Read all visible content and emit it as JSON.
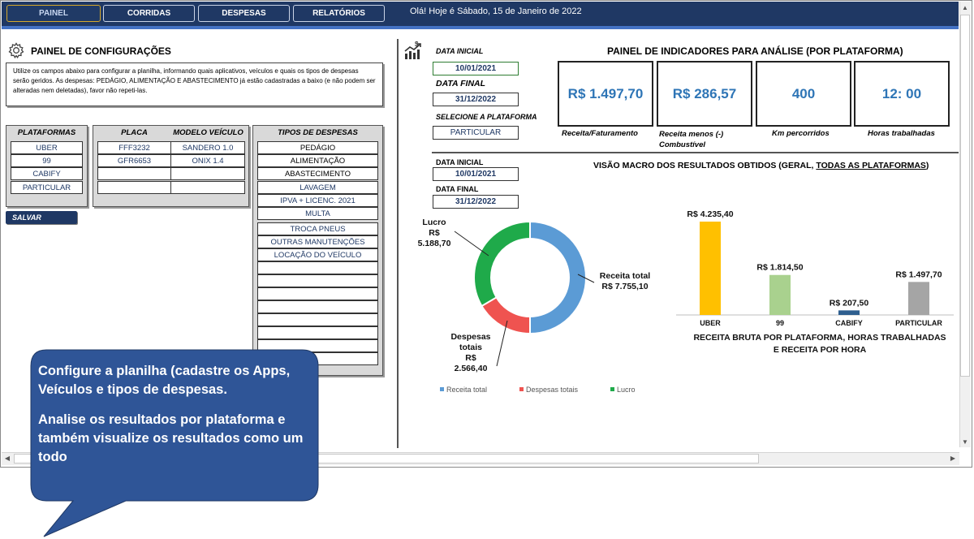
{
  "nav": {
    "tabs": [
      {
        "label": "PAINEL"
      },
      {
        "label": "CORRIDAS"
      },
      {
        "label": "DESPESAS"
      },
      {
        "label": "RELATÓRIOS"
      }
    ],
    "greeting": "Olá! Hoje é Sábado, 15 de Janeiro de 2022"
  },
  "config": {
    "title": "PAINEL DE CONFIGURAÇÕES",
    "icon": "gear-icon",
    "info": "Utilize os campos abaixo para configurar a planilha, informando quais aplicativos, veículos e quais os tipos de despesas serão geridos. As despesas: PEDÁGIO, ALIMENTAÇÃO E ABASTECIMENTO já estão cadastradas a baixo (e não podem ser alteradas nem deletadas), favor não repeti-las.",
    "platforms_header": "PLATAFORMAS",
    "platforms": [
      "UBER",
      "99",
      "CABIFY",
      "PARTICULAR"
    ],
    "plate_header": "PLACA",
    "model_header": "MODELO VEÍCULO",
    "vehicles": [
      {
        "plate": "FFF3232",
        "model": "SANDERO 1.0"
      },
      {
        "plate": "GFR6653",
        "model": "ONIX 1.4"
      }
    ],
    "expenses_header": "TIPOS DE DESPESAS",
    "expenses": [
      "PEDÁGIO",
      "ALIMENTAÇÃO",
      "ABASTECIMENTO",
      "LAVAGEM",
      "IPVA + LICENC. 2021",
      "MULTA",
      "TROCA PNEUS",
      "OUTRAS MANUTENÇÕES",
      "LOCAÇÃO DO VEÍCULO"
    ],
    "save_label": "SALVAR"
  },
  "filters": {
    "icon": "chart-money-icon",
    "start_label": "DATA INICIAL",
    "start_value": "10/01/2021",
    "end_label": "DATA FINAL",
    "end_value": "31/12/2022",
    "platform_label": "SELECIONE A PLATAFORMA",
    "platform_value": "PARTICULAR"
  },
  "indicators": {
    "title": "PAINEL DE INDICADORES PARA ANÁLISE (POR PLATAFORMA)",
    "kpis": [
      {
        "value": "R$ 1.497,70",
        "caption": "Receita/Faturamento"
      },
      {
        "value": "R$ 286,57",
        "caption": "Receita menos (-) Combustível"
      },
      {
        "value": "400",
        "caption": "Km percorridos"
      },
      {
        "value": "12: 00",
        "caption": "Horas trabalhadas"
      }
    ]
  },
  "macro": {
    "title_prefix": "VISÃO MACRO DOS RESULTADOS OBTIDOS (GERAL, ",
    "title_underlined": "TODAS AS PLATAFORMAS",
    "title_suffix": ")",
    "start_label": "DATA INICIAL",
    "start_value": "10/01/2021",
    "end_label": "DATA FINAL",
    "end_value": "31/12/2022"
  },
  "chart_data": [
    {
      "type": "pie",
      "variant": "donut",
      "labels": [
        "Receita total",
        "Despesas totais",
        "Lucro"
      ],
      "values": [
        7755.1,
        2566.4,
        5188.7
      ],
      "value_labels": [
        "R$ 7.755,10",
        "R$ 2.566,40",
        "R$ 5.188,70"
      ],
      "label_lines": [
        [
          "Receita total",
          "R$ 7.755,10"
        ],
        [
          "Despesas",
          "totais",
          "R$",
          "2.566,40"
        ],
        [
          "Lucro",
          "R$",
          "5.188,70"
        ]
      ],
      "colors": [
        "#5b9bd5",
        "#ef5350",
        "#1faa4a"
      ],
      "legend_position": "bottom"
    },
    {
      "type": "bar",
      "title": "RECEITA BRUTA POR PLATAFORMA, HORAS TRABALHADAS E RECEITA POR HORA",
      "categories": [
        "UBER",
        "99",
        "CABIFY",
        "PARTICULAR"
      ],
      "values": [
        4235.4,
        1814.5,
        207.5,
        1497.7
      ],
      "value_labels": [
        "R$ 4.235,40",
        "R$ 1.814,50",
        "R$ 207,50",
        "R$ 1.497,70"
      ],
      "colors": [
        "#ffc000",
        "#a9d18e",
        "#2e5f8f",
        "#a5a5a5"
      ],
      "grid": false
    }
  ],
  "callout": {
    "line1": "Configure a planilha (cadastre os Apps, Veículos e tipos de despesas.",
    "line2": "Analise os resultados por plataforma e também visualize os resultados como um todo",
    "color": "#2f5597"
  }
}
